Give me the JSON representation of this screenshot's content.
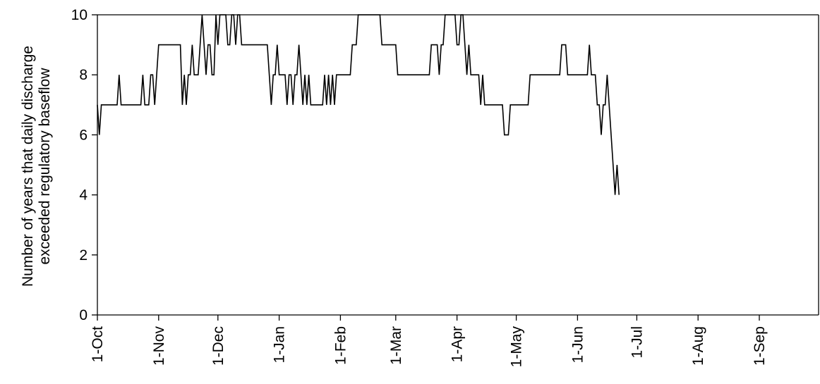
{
  "chart_data": {
    "type": "line",
    "title": "",
    "xlabel": "",
    "ylabel_lines": [
      "Number of years that daily discharge",
      "exceeded regulatory baseflow"
    ],
    "ylim": [
      0,
      10
    ],
    "yticks": [
      0,
      2,
      4,
      6,
      8,
      10
    ],
    "xlim": [
      0,
      365
    ],
    "xticks": [
      {
        "day": 0,
        "label": "1-Oct"
      },
      {
        "day": 31,
        "label": "1-Nov"
      },
      {
        "day": 61,
        "label": "1-Dec"
      },
      {
        "day": 92,
        "label": "1-Jan"
      },
      {
        "day": 123,
        "label": "1-Feb"
      },
      {
        "day": 151,
        "label": "1-Mar"
      },
      {
        "day": 182,
        "label": "1-Apr"
      },
      {
        "day": 212,
        "label": "1-May"
      },
      {
        "day": 243,
        "label": "1-Jun"
      },
      {
        "day": 273,
        "label": "1-Jul"
      },
      {
        "day": 304,
        "label": "1-Aug"
      },
      {
        "day": 335,
        "label": "1-Sep"
      }
    ],
    "grid": false,
    "series": [
      {
        "color": "#000000",
        "points": [
          [
            0,
            7
          ],
          [
            1,
            6
          ],
          [
            2,
            7
          ],
          [
            10,
            7
          ],
          [
            11,
            8
          ],
          [
            12,
            7
          ],
          [
            22,
            7
          ],
          [
            23,
            8
          ],
          [
            24,
            7
          ],
          [
            26,
            7
          ],
          [
            27,
            8
          ],
          [
            28,
            8
          ],
          [
            29,
            7
          ],
          [
            30,
            8
          ],
          [
            31,
            9
          ],
          [
            42,
            9
          ],
          [
            43,
            7
          ],
          [
            44,
            8
          ],
          [
            45,
            7
          ],
          [
            46,
            8
          ],
          [
            47,
            8
          ],
          [
            48,
            9
          ],
          [
            49,
            8
          ],
          [
            51,
            8
          ],
          [
            52,
            9
          ],
          [
            53,
            10
          ],
          [
            54,
            9
          ],
          [
            55,
            8
          ],
          [
            56,
            9
          ],
          [
            57,
            9
          ],
          [
            58,
            8
          ],
          [
            59,
            8
          ],
          [
            60,
            10
          ],
          [
            61,
            9
          ],
          [
            62,
            10
          ],
          [
            64,
            10
          ],
          [
            65,
            10
          ],
          [
            66,
            9
          ],
          [
            67,
            9
          ],
          [
            68,
            10
          ],
          [
            69,
            10
          ],
          [
            70,
            9
          ],
          [
            71,
            10
          ],
          [
            72,
            10
          ],
          [
            73,
            9
          ],
          [
            86,
            9
          ],
          [
            87,
            8
          ],
          [
            88,
            7
          ],
          [
            89,
            8
          ],
          [
            90,
            8
          ],
          [
            91,
            9
          ],
          [
            92,
            8
          ],
          [
            93,
            8
          ],
          [
            95,
            8
          ],
          [
            96,
            7
          ],
          [
            97,
            8
          ],
          [
            98,
            8
          ],
          [
            99,
            7
          ],
          [
            100,
            8
          ],
          [
            101,
            8
          ],
          [
            102,
            9
          ],
          [
            103,
            8
          ],
          [
            104,
            7
          ],
          [
            105,
            8
          ],
          [
            106,
            7
          ],
          [
            107,
            8
          ],
          [
            108,
            7
          ],
          [
            114,
            7
          ],
          [
            115,
            8
          ],
          [
            116,
            7
          ],
          [
            117,
            8
          ],
          [
            118,
            7
          ],
          [
            119,
            8
          ],
          [
            120,
            7
          ],
          [
            121,
            8
          ],
          [
            128,
            8
          ],
          [
            129,
            9
          ],
          [
            131,
            9
          ],
          [
            132,
            10
          ],
          [
            143,
            10
          ],
          [
            144,
            9
          ],
          [
            151,
            9
          ],
          [
            152,
            8
          ],
          [
            168,
            8
          ],
          [
            169,
            9
          ],
          [
            172,
            9
          ],
          [
            173,
            8
          ],
          [
            174,
            9
          ],
          [
            175,
            9
          ],
          [
            176,
            10
          ],
          [
            181,
            10
          ],
          [
            182,
            9
          ],
          [
            183,
            9
          ],
          [
            184,
            10
          ],
          [
            185,
            10
          ],
          [
            186,
            9
          ],
          [
            187,
            8
          ],
          [
            188,
            9
          ],
          [
            189,
            8
          ],
          [
            193,
            8
          ],
          [
            194,
            7
          ],
          [
            195,
            8
          ],
          [
            196,
            7
          ],
          [
            205,
            7
          ],
          [
            206,
            6
          ],
          [
            208,
            6
          ],
          [
            209,
            7
          ],
          [
            218,
            7
          ],
          [
            219,
            8
          ],
          [
            234,
            8
          ],
          [
            235,
            9
          ],
          [
            237,
            9
          ],
          [
            238,
            8
          ],
          [
            248,
            8
          ],
          [
            249,
            9
          ],
          [
            250,
            8
          ],
          [
            252,
            8
          ],
          [
            253,
            7
          ],
          [
            254,
            7
          ],
          [
            255,
            6
          ],
          [
            256,
            7
          ],
          [
            257,
            7
          ],
          [
            258,
            8
          ],
          [
            259,
            7
          ],
          [
            260,
            6
          ],
          [
            261,
            5
          ],
          [
            262,
            4
          ],
          [
            263,
            5
          ],
          [
            264,
            4
          ]
        ]
      }
    ]
  },
  "colors": {
    "line": "#000000",
    "axis": "#000000",
    "background": "#ffffff"
  }
}
